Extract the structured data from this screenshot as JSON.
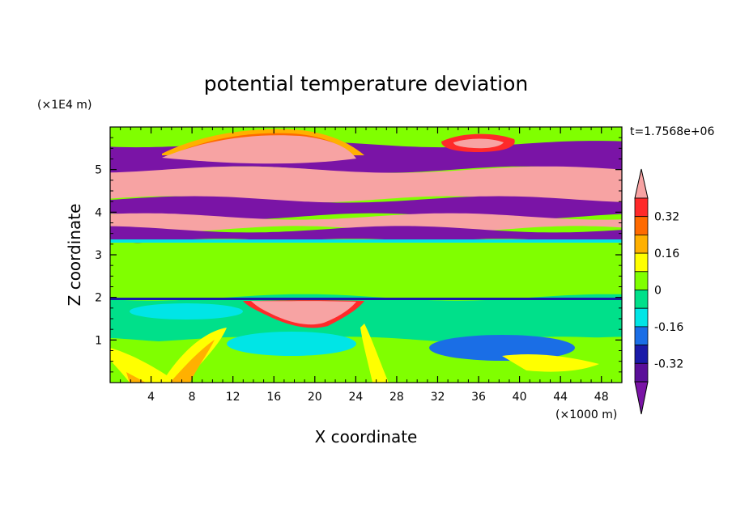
{
  "chart_data": {
    "type": "heatmap",
    "title": "potential temperature deviation",
    "xlabel": "X coordinate",
    "ylabel": "Z coordinate",
    "x_unit": "(×1000 m)",
    "y_unit": "(×1E4 m)",
    "time_label": "t=1.7568e+06",
    "xlim": [
      0,
      50
    ],
    "ylim": [
      0,
      6
    ],
    "x_ticks": [
      4,
      8,
      12,
      16,
      20,
      24,
      28,
      32,
      36,
      40,
      44,
      48
    ],
    "y_ticks": [
      1,
      2,
      3,
      4,
      5
    ],
    "colorbar": {
      "colors": [
        "#7a14a6",
        "#5a0f99",
        "#1a1aa8",
        "#1a6ee6",
        "#00e5e6",
        "#00e08a",
        "#80ff00",
        "#ffff00",
        "#ffb000",
        "#ff6a00",
        "#ff2a2a",
        "#f7a3a3"
      ],
      "tick_labels": [
        "0.32",
        "0.16",
        "0",
        "-0.16",
        "-0.32"
      ],
      "tick_values": [
        0.32,
        0.16,
        0,
        -0.16,
        -0.32
      ],
      "levels": [
        -0.4,
        -0.32,
        -0.24,
        -0.16,
        -0.08,
        0,
        0.08,
        0.16,
        0.24,
        0.32,
        0.4
      ]
    },
    "bands": [
      {
        "z": [
          5.6,
          6.0
        ],
        "value": 0.0
      },
      {
        "z": [
          5.0,
          5.6
        ],
        "value": -0.45
      },
      {
        "z": [
          4.3,
          5.0
        ],
        "value": 0.45
      },
      {
        "z": [
          3.9,
          4.3
        ],
        "value": -0.45
      },
      {
        "z": [
          3.6,
          3.9
        ],
        "value": 0.45
      },
      {
        "z": [
          3.3,
          3.6
        ],
        "value": -0.45
      },
      {
        "z": [
          2.0,
          3.3
        ],
        "value": 0.05
      },
      {
        "z": [
          1.0,
          2.0
        ],
        "value": -0.05
      },
      {
        "z": [
          0.0,
          1.0
        ],
        "value": 0.06
      }
    ]
  }
}
